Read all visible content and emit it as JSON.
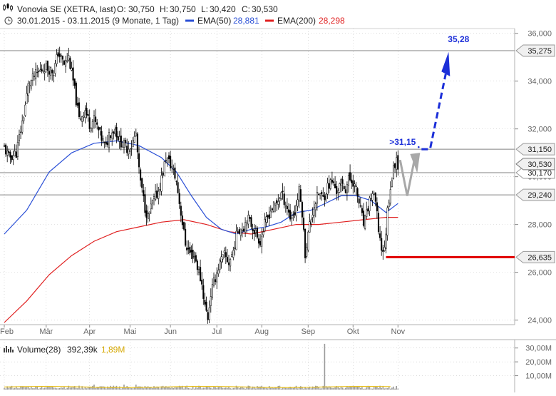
{
  "header": {
    "title": "Vonovia SE (XETRA, last)",
    "ohlc": {
      "o_label": "O:",
      "o": "30,750",
      "h_label": "H:",
      "h": "30,750",
      "l_label": "L:",
      "l": "30,420",
      "c_label": "C:",
      "c": "30,530"
    },
    "range": "30.01.2015 - 03.11.2015 (9 Monate, 1 Tag)",
    "ema50_label": "EMA(50)",
    "ema50_value": "28,881",
    "ema200_label": "EMA(200)",
    "ema200_value": "28,298"
  },
  "volume_header": {
    "label": "Volume(28)",
    "value": "392,39k",
    "avg": "1,89M"
  },
  "colors": {
    "ema50": "#2a4fd6",
    "ema200": "#e02020",
    "target_blue": "#1c2fd8",
    "support_red": "#e00000",
    "scenario_arrow": "#a8a8a8",
    "candles": "#000000",
    "volume_bars": "#9a9a9a",
    "volume_avg": "#e8c020",
    "grid": "#c8c8c8"
  },
  "chart_data": [
    {
      "type": "candlestick",
      "title": "Vonovia SE (XETRA, last)",
      "x_axis_labels": [
        "Feb",
        "Mär",
        "Apr",
        "Mai",
        "Jun",
        "Jul",
        "Aug",
        "Sep",
        "Okt",
        "Nov"
      ],
      "y_ticks": [
        "24,000",
        "26,000",
        "28,000",
        "30,000",
        "32,000",
        "34,000",
        "36,000"
      ],
      "y_tick_values": [
        24,
        26,
        28,
        30,
        32,
        34,
        36
      ],
      "ylim": [
        23.6,
        36.2
      ],
      "price_path": [
        [
          0,
          31.2
        ],
        [
          3,
          30.8
        ],
        [
          8,
          31.0
        ],
        [
          13,
          32.6
        ],
        [
          16,
          33.8
        ],
        [
          20,
          34.2
        ],
        [
          27,
          34.6
        ],
        [
          33,
          34.4
        ],
        [
          36,
          35.2
        ],
        [
          40,
          34.7
        ],
        [
          43,
          35.0
        ],
        [
          46,
          34.0
        ],
        [
          50,
          32.4
        ],
        [
          54,
          32.8
        ],
        [
          57,
          32.2
        ],
        [
          60,
          32.4
        ],
        [
          65,
          31.6
        ],
        [
          68,
          31.2
        ],
        [
          70,
          31.8
        ],
        [
          74,
          32.0
        ],
        [
          77,
          31.5
        ],
        [
          82,
          31.2
        ],
        [
          85,
          31.3
        ],
        [
          88,
          31.8
        ],
        [
          90,
          30.2
        ],
        [
          92,
          29.4
        ],
        [
          94,
          28.7
        ],
        [
          96,
          28.3
        ],
        [
          99,
          28.9
        ],
        [
          103,
          29.4
        ],
        [
          106,
          30.2
        ],
        [
          108,
          30.8
        ],
        [
          112,
          30.4
        ],
        [
          115,
          29.8
        ],
        [
          118,
          28.5
        ],
        [
          121,
          27.2
        ],
        [
          124,
          26.8
        ],
        [
          127,
          26.7
        ],
        [
          130,
          26.0
        ],
        [
          132,
          25.5
        ],
        [
          134,
          24.6
        ],
        [
          136,
          24.1
        ],
        [
          138,
          25.1
        ],
        [
          141,
          25.8
        ],
        [
          144,
          26.4
        ],
        [
          147,
          26.7
        ],
        [
          150,
          26.4
        ],
        [
          153,
          26.9
        ],
        [
          156,
          27.8
        ],
        [
          160,
          27.9
        ],
        [
          162,
          28.3
        ],
        [
          166,
          27.9
        ],
        [
          169,
          27.5
        ],
        [
          171,
          27.3
        ],
        [
          174,
          28.0
        ],
        [
          178,
          28.6
        ],
        [
          182,
          28.9
        ],
        [
          185,
          29.3
        ],
        [
          188,
          28.9
        ],
        [
          191,
          28.3
        ],
        [
          194,
          28.5
        ],
        [
          197,
          29.4
        ],
        [
          199,
          28.5
        ],
        [
          201,
          26.8
        ],
        [
          204,
          28.0
        ],
        [
          207,
          28.8
        ],
        [
          210,
          29.3
        ],
        [
          213,
          29.1
        ],
        [
          216,
          29.6
        ],
        [
          219,
          29.8
        ],
        [
          222,
          29.4
        ],
        [
          225,
          29.7
        ],
        [
          228,
          29.5
        ],
        [
          230,
          29.9
        ],
        [
          233,
          29.8
        ],
        [
          236,
          29.2
        ],
        [
          238,
          28.6
        ],
        [
          240,
          28.0
        ],
        [
          242,
          28.4
        ],
        [
          244,
          29.0
        ],
        [
          246,
          29.3
        ],
        [
          248,
          28.9
        ],
        [
          250,
          27.8
        ],
        [
          252,
          27.0
        ],
        [
          254,
          26.9
        ],
        [
          256,
          28.6
        ],
        [
          258,
          29.6
        ],
        [
          260,
          30.3
        ],
        [
          262,
          30.8
        ],
        [
          263,
          30.53
        ]
      ],
      "series": [
        {
          "name": "EMA(50)",
          "points": [
            [
              0,
              27.6
            ],
            [
              15,
              28.6
            ],
            [
              30,
              30.2
            ],
            [
              45,
              31.0
            ],
            [
              60,
              31.4
            ],
            [
              75,
              31.5
            ],
            [
              90,
              31.3
            ],
            [
              105,
              30.8
            ],
            [
              115,
              30.2
            ],
            [
              125,
              29.2
            ],
            [
              135,
              28.3
            ],
            [
              145,
              27.8
            ],
            [
              155,
              27.6
            ],
            [
              165,
              27.8
            ],
            [
              175,
              27.9
            ],
            [
              185,
              28.1
            ],
            [
              195,
              28.5
            ],
            [
              205,
              28.6
            ],
            [
              215,
              28.9
            ],
            [
              225,
              29.2
            ],
            [
              235,
              29.2
            ],
            [
              245,
              29.0
            ],
            [
              255,
              28.5
            ],
            [
              263,
              28.88
            ]
          ]
        },
        {
          "name": "EMA(200)",
          "points": [
            [
              0,
              23.9
            ],
            [
              15,
              24.8
            ],
            [
              30,
              25.9
            ],
            [
              45,
              26.7
            ],
            [
              60,
              27.3
            ],
            [
              75,
              27.7
            ],
            [
              90,
              27.9
            ],
            [
              105,
              28.1
            ],
            [
              120,
              28.2
            ],
            [
              135,
              28.0
            ],
            [
              150,
              27.7
            ],
            [
              165,
              27.6
            ],
            [
              180,
              27.8
            ],
            [
              195,
              28.0
            ],
            [
              210,
              28.0
            ],
            [
              225,
              28.1
            ],
            [
              240,
              28.2
            ],
            [
              255,
              28.3
            ],
            [
              263,
              28.3
            ]
          ]
        }
      ],
      "horizontal_levels": [
        {
          "label": "35,275",
          "value": 35.275,
          "color": "#808080"
        },
        {
          "label": "31,150",
          "value": 31.15,
          "color": "#808080"
        },
        {
          "label": "30,170",
          "value": 30.17,
          "color": "#808080"
        },
        {
          "label": "29,240",
          "value": 29.24,
          "color": "#808080"
        },
        {
          "label": "26,635",
          "value": 26.635,
          "color": "#e00000"
        }
      ],
      "last_price_label": "30,530",
      "last_price": 30.53,
      "annotations": [
        {
          "text": ">31,15",
          "value": 31.15,
          "color": "#1c2fd8"
        },
        {
          "text": "35,28",
          "value": 35.28,
          "color": "#1c2fd8"
        }
      ]
    },
    {
      "type": "bar",
      "title": "Volume(28)",
      "y_ticks": [
        "10,00M",
        "20,00M",
        "30,00M"
      ],
      "y_tick_values": [
        10,
        20,
        30
      ],
      "ylim": [
        0,
        35
      ],
      "spike": {
        "x": 214,
        "value": 33.0
      },
      "baseline_volume": 1.89
    }
  ]
}
